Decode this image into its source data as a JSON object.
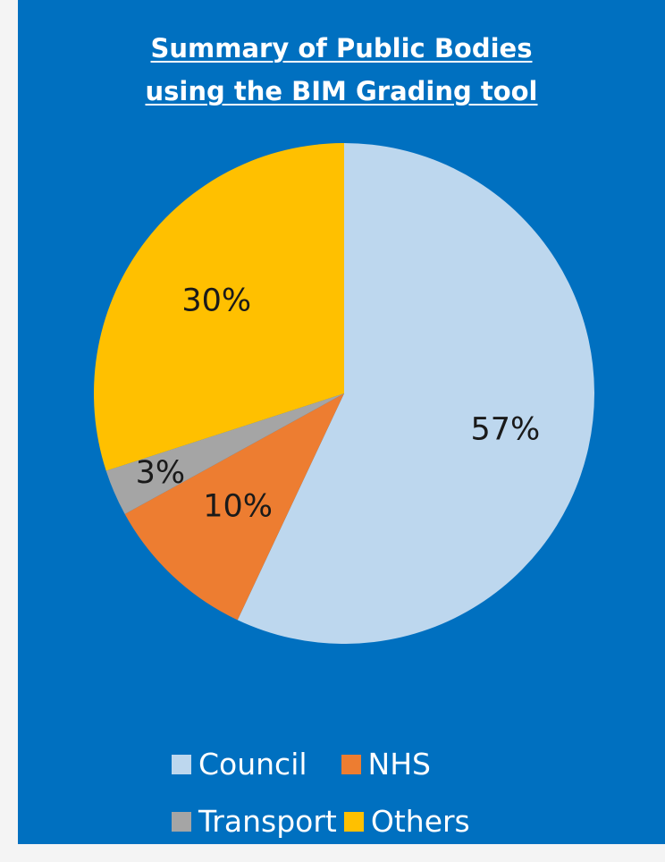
{
  "chart_data": {
    "type": "pie",
    "title_lines": [
      "Summary of Public Bodies",
      "using the BIM Grading tool"
    ],
    "series": [
      {
        "name": "Council",
        "value": 57,
        "label": "57%",
        "color": "#bdd7ee"
      },
      {
        "name": "NHS",
        "value": 10,
        "label": "10%",
        "color": "#ed7d31"
      },
      {
        "name": "Transport",
        "value": 3,
        "label": "3%",
        "color": "#a5a5a5"
      },
      {
        "name": "Others",
        "value": 30,
        "label": "30%",
        "color": "#ffc000"
      }
    ],
    "legend_position": "bottom",
    "background_color": "#0070c0"
  }
}
